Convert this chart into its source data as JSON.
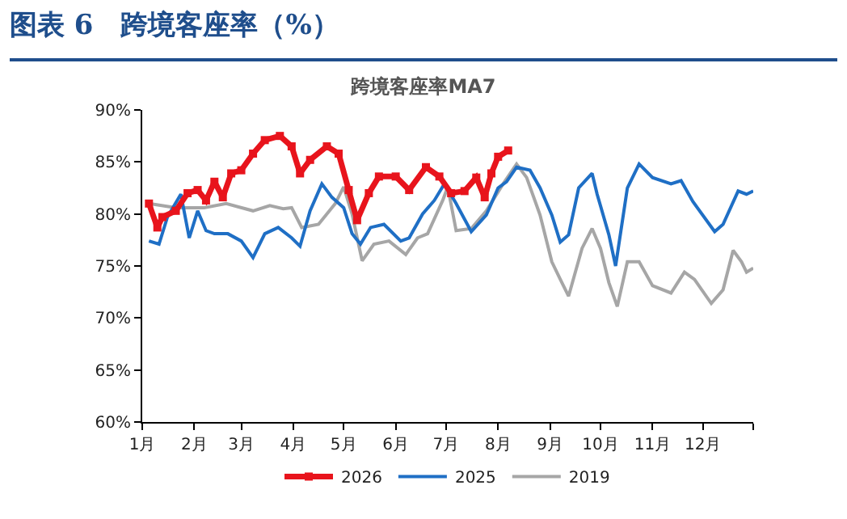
{
  "chart_data": {
    "type": "line",
    "title": "图表 6　跨境客座率（%）",
    "subtitle": "跨境客座率MA7",
    "xlim": [
      "--01-01",
      "--12-31"
    ],
    "xticks": [
      {
        "value": "--01-01",
        "label": "1月"
      },
      {
        "value": "--02-01",
        "label": "2月"
      },
      {
        "value": "--03-01",
        "label": "3月"
      },
      {
        "value": "--04-01",
        "label": "4月"
      },
      {
        "value": "--05-01",
        "label": "5月"
      },
      {
        "value": "--06-01",
        "label": "6月"
      },
      {
        "value": "--07-01",
        "label": "7月"
      },
      {
        "value": "--08-01",
        "label": "8月"
      },
      {
        "value": "--09-01",
        "label": "9月"
      },
      {
        "value": "--10-01",
        "label": "10月"
      },
      {
        "value": "--11-01",
        "label": "11月"
      },
      {
        "value": "--12-01",
        "label": "12月"
      },
      {
        "value": "--12-31",
        "label": null
      }
    ],
    "ylim": [
      60,
      90
    ],
    "yticks": [
      {
        "value": 60,
        "label": "60%"
      },
      {
        "value": 65,
        "label": "65%"
      },
      {
        "value": 70,
        "label": "70%"
      },
      {
        "value": 75,
        "label": "75%"
      },
      {
        "value": 80,
        "label": "80%"
      },
      {
        "value": 85,
        "label": "85%"
      },
      {
        "value": 90,
        "label": "90%"
      }
    ],
    "grid": false,
    "legend": "bottom",
    "series": [
      {
        "name": "2026",
        "color": "#e8141c",
        "marker": "square",
        "x": [
          "--01-05",
          "--01-10",
          "--01-13",
          "--01-21",
          "--01-28",
          "--02-03",
          "--02-08",
          "--02-13",
          "--02-18",
          "--02-23",
          "--03-01",
          "--03-08",
          "--03-15",
          "--03-24",
          "--03-31",
          "--04-05",
          "--04-11",
          "--04-21",
          "--04-28",
          "--05-04",
          "--05-09",
          "--05-16",
          "--05-22",
          "--06-01",
          "--06-09",
          "--06-19",
          "--06-27",
          "--07-04",
          "--07-12",
          "--07-19",
          "--07-24",
          "--07-28",
          "--08-01",
          "--08-07"
        ],
        "values": [
          81,
          78.7,
          79.7,
          80.3,
          82,
          82.3,
          81.3,
          83.1,
          81.6,
          83.9,
          84.2,
          85.8,
          87.1,
          87.5,
          86.5,
          83.9,
          85.2,
          86.5,
          85.8,
          82.3,
          79.4,
          82,
          83.6,
          83.6,
          82.3,
          84.5,
          83.6,
          82,
          82.2,
          83.5,
          81.6,
          83.9,
          85.5,
          86.1
        ]
      },
      {
        "name": "2025",
        "color": "#1f6fc5",
        "x": [
          "--01-05",
          "--01-11",
          "--01-16",
          "--01-24",
          "--01-29",
          "--02-03",
          "--02-08",
          "--02-13",
          "--02-21",
          "--03-01",
          "--03-08",
          "--03-15",
          "--03-23",
          "--03-31",
          "--04-05",
          "--04-11",
          "--04-18",
          "--04-24",
          "--05-01",
          "--05-06",
          "--05-11",
          "--05-17",
          "--05-25",
          "--06-04",
          "--06-09",
          "--06-17",
          "--06-24",
          "--06-30",
          "--07-07",
          "--07-16",
          "--07-25",
          "--08-01",
          "--08-06",
          "--08-12",
          "--08-20",
          "--08-26",
          "--09-02",
          "--09-07",
          "--09-12",
          "--09-18",
          "--09-26",
          "--09-29",
          "--10-06",
          "--10-10",
          "--10-17",
          "--10-24",
          "--11-01",
          "--11-12",
          "--11-18",
          "--11-25",
          "--12-08",
          "--12-13",
          "--12-22",
          "--12-27",
          "--12-31"
        ],
        "values": [
          77.4,
          77.1,
          79.7,
          81.9,
          77.7,
          80.3,
          78.4,
          78.1,
          78.1,
          77.4,
          75.8,
          78.1,
          78.7,
          77.7,
          76.9,
          80.3,
          82.9,
          81.6,
          80.6,
          78.1,
          77.1,
          78.7,
          79,
          77.4,
          77.7,
          80,
          81.3,
          82.9,
          81,
          78.3,
          79.9,
          82.5,
          83.1,
          84.5,
          84.2,
          82.5,
          79.9,
          77.3,
          78,
          82.5,
          83.9,
          81.9,
          78,
          75,
          82.5,
          84.8,
          83.5,
          82.9,
          83.2,
          81.2,
          78.3,
          79,
          82.2,
          81.9,
          82.2
        ]
      },
      {
        "name": "2019",
        "color": "#a6a6a6",
        "x": [
          "--01-05",
          "--01-21",
          "--02-07",
          "--02-20",
          "--03-08",
          "--03-18",
          "--03-26",
          "--03-31",
          "--04-06",
          "--04-16",
          "--04-26",
          "--05-01",
          "--05-06",
          "--05-12",
          "--05-19",
          "--05-28",
          "--06-07",
          "--06-14",
          "--06-20",
          "--06-29",
          "--07-02",
          "--07-07",
          "--07-16",
          "--07-25",
          "--08-04",
          "--08-12",
          "--08-18",
          "--08-26",
          "--09-02",
          "--09-08",
          "--09-12",
          "--09-20",
          "--09-26",
          "--10-01",
          "--10-06",
          "--10-11",
          "--10-17",
          "--10-24",
          "--11-01",
          "--11-12",
          "--11-20",
          "--11-26",
          "--12-06",
          "--12-13",
          "--12-19",
          "--12-24",
          "--12-27",
          "--12-31"
        ],
        "values": [
          81,
          80.6,
          80.6,
          81,
          80.3,
          80.8,
          80.5,
          80.6,
          78.7,
          79,
          81,
          82.6,
          80,
          75.5,
          77.1,
          77.4,
          76.1,
          77.7,
          78.1,
          81.3,
          82.6,
          78.4,
          78.6,
          80.3,
          82.9,
          84.8,
          83.5,
          79.9,
          75.4,
          73.4,
          72.1,
          76.7,
          78.6,
          76.7,
          73.4,
          71.1,
          75.4,
          75.4,
          73.1,
          72.4,
          74.4,
          73.7,
          71.4,
          72.7,
          76.5,
          75.4,
          74.4,
          74.8
        ]
      }
    ]
  }
}
